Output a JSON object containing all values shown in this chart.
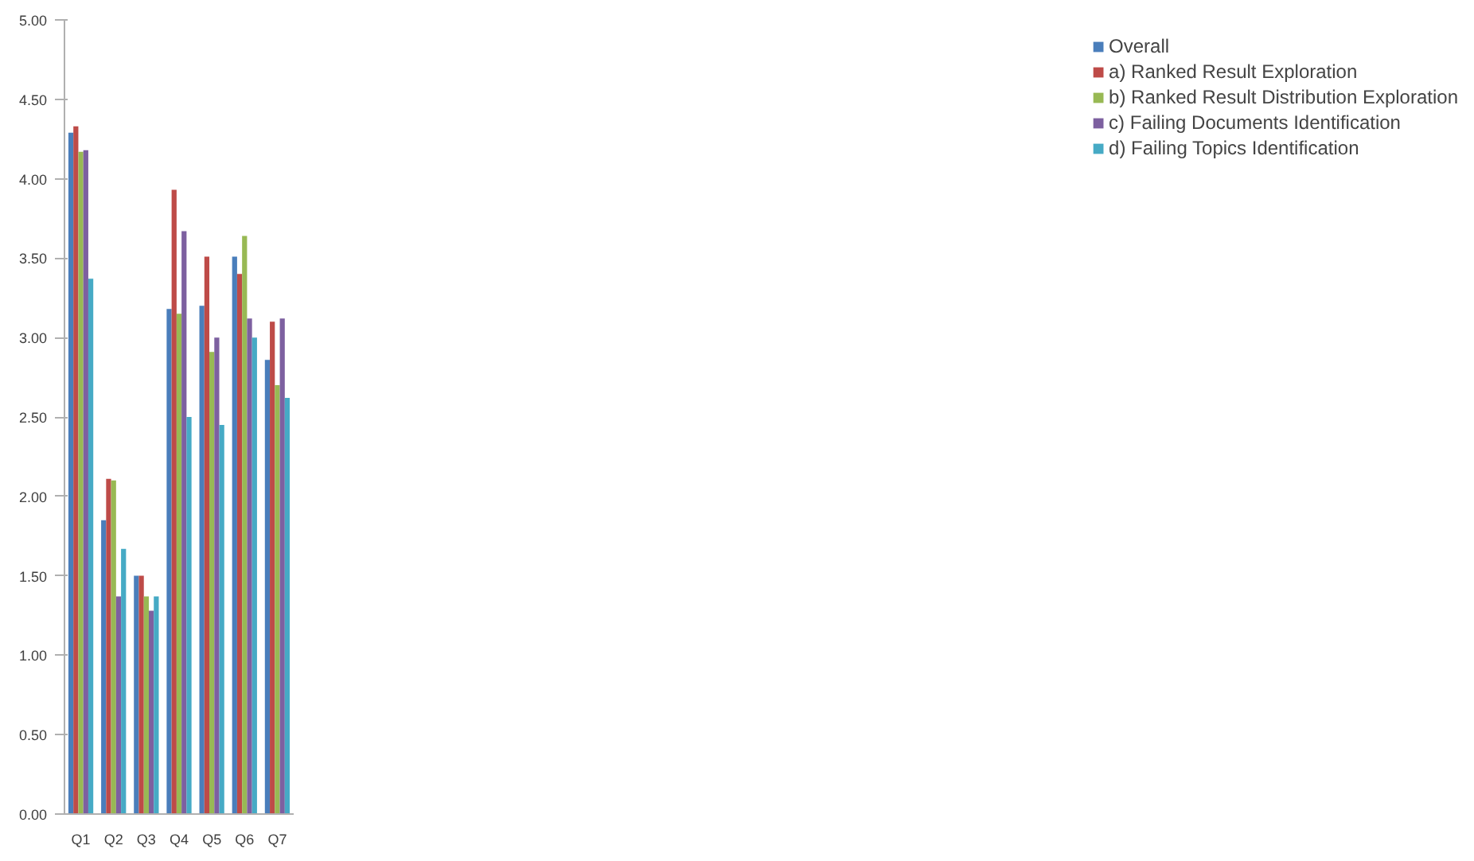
{
  "chart_data": {
    "type": "bar",
    "categories": [
      "Q1",
      "Q2",
      "Q3",
      "Q4",
      "Q5",
      "Q6",
      "Q7"
    ],
    "series": [
      {
        "name": "Overall",
        "color": "#4a7ebb",
        "values": [
          4.29,
          1.85,
          1.5,
          3.18,
          3.2,
          3.51,
          2.86
        ]
      },
      {
        "name": "a) Ranked Result Exploration",
        "color": "#be4b48",
        "values": [
          4.33,
          2.11,
          1.5,
          3.93,
          3.51,
          3.4,
          3.1
        ]
      },
      {
        "name": "b) Ranked Result Distribution Exploration",
        "color": "#98b954",
        "values": [
          4.17,
          2.1,
          1.37,
          3.15,
          2.91,
          3.64,
          2.7
        ]
      },
      {
        "name": "c) Failing Documents Identification",
        "color": "#7d60a0",
        "values": [
          4.18,
          1.37,
          1.28,
          3.67,
          3.0,
          3.12,
          3.12
        ]
      },
      {
        "name": "d) Failing Topics Identification",
        "color": "#46aac5",
        "values": [
          3.37,
          1.67,
          1.37,
          2.5,
          2.45,
          3.0,
          2.62
        ]
      }
    ],
    "ylim": [
      0,
      5
    ],
    "yticks": [
      {
        "value": 0,
        "label": "0.00"
      },
      {
        "value": 0.5,
        "label": "0.50"
      },
      {
        "value": 1,
        "label": "1.00"
      },
      {
        "value": 1.5,
        "label": "1.50"
      },
      {
        "value": 2,
        "label": "2.00"
      },
      {
        "value": 2.5,
        "label": "2.50"
      },
      {
        "value": 3,
        "label": "3.00"
      },
      {
        "value": 3.5,
        "label": "3.50"
      },
      {
        "value": 4,
        "label": "4.00"
      },
      {
        "value": 4.5,
        "label": "4.50"
      },
      {
        "value": 5,
        "label": "5.00"
      }
    ],
    "grid": false,
    "legend": "right"
  }
}
